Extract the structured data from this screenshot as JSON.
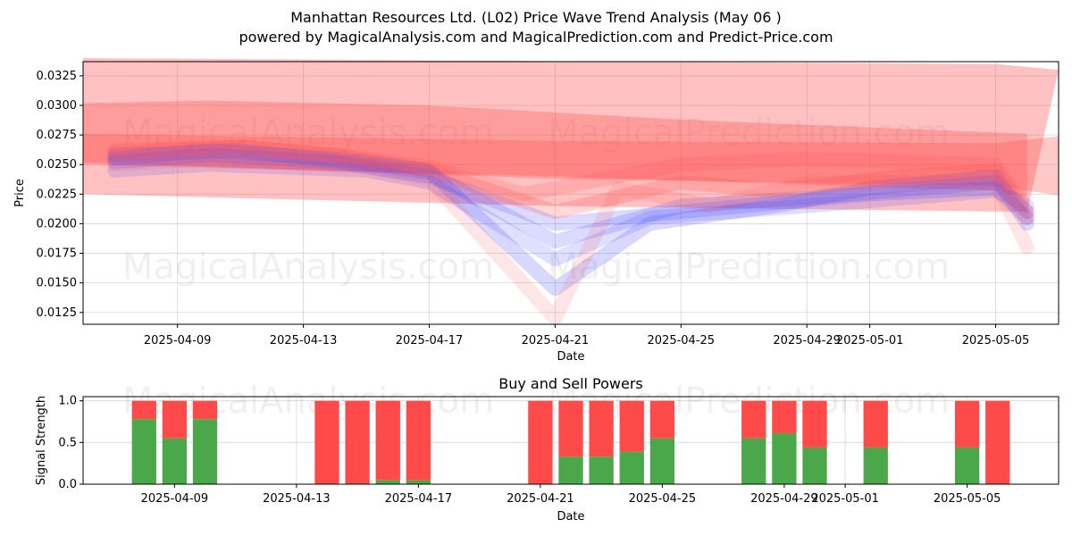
{
  "title_line1": "Manhattan Resources Ltd. (L02) Price Wave Trend Analysis (May 06 )",
  "title_line2": "powered by MagicalAnalysis.com and MagicalPrediction.com and Predict-Price.com",
  "watermarks": [
    "MagicalAnalysis.com",
    "MagicalPrediction.com"
  ],
  "colors": {
    "band": "#ff4d4d",
    "wave": "#4d4dff",
    "buy": "#4aa84a",
    "sell": "#ff4a4a"
  },
  "chart_data": [
    {
      "type": "area",
      "title": "",
      "xlabel": "Date",
      "ylabel": "Price",
      "xlim": [
        "2025-04-06",
        "2025-05-07"
      ],
      "ylim": [
        0.0115,
        0.0337
      ],
      "yticks": [
        0.0125,
        0.015,
        0.0175,
        0.02,
        0.0225,
        0.025,
        0.0275,
        0.03,
        0.0325
      ],
      "ytick_labels": [
        "0.0125",
        "0.0150",
        "0.0175",
        "0.0200",
        "0.0225",
        "0.0250",
        "0.0275",
        "0.0300",
        "0.0325"
      ],
      "xticks": [
        "2025-04-09",
        "2025-04-13",
        "2025-04-17",
        "2025-04-21",
        "2025-04-25",
        "2025-04-29",
        "2025-05-01",
        "2025-05-05"
      ],
      "grid": true,
      "bands": [
        {
          "name": "",
          "upper": [
            [
              "2025-04-06",
              0.034
            ],
            [
              "2025-05-05",
              0.0335
            ],
            [
              "2025-05-07",
              0.033
            ]
          ],
          "lower": [
            [
              "2025-04-06",
              0.0225
            ],
            [
              "2025-04-21",
              0.0215
            ],
            [
              "2025-05-06",
              0.021
            ]
          ],
          "opacity": 0.35
        },
        {
          "name": "",
          "upper": [
            [
              "2025-04-06",
              0.0302
            ],
            [
              "2025-04-10",
              0.0304
            ],
            [
              "2025-04-17",
              0.03
            ],
            [
              "2025-04-25",
              0.0288
            ],
            [
              "2025-05-06",
              0.0276
            ]
          ],
          "lower": [
            [
              "2025-04-06",
              0.025
            ],
            [
              "2025-04-21",
              0.024
            ],
            [
              "2025-05-05",
              0.0228
            ],
            [
              "2025-05-06",
              0.0222
            ]
          ],
          "opacity": 0.3
        },
        {
          "name": "",
          "upper": [
            [
              "2025-04-06",
              0.0276
            ],
            [
              "2025-04-21",
              0.027
            ],
            [
              "2025-05-05",
              0.0268
            ],
            [
              "2025-05-07",
              0.0274
            ]
          ],
          "lower": [
            [
              "2025-04-06",
              0.0252
            ],
            [
              "2025-04-21",
              0.0238
            ],
            [
              "2025-05-05",
              0.0232
            ],
            [
              "2025-05-07",
              0.0224
            ]
          ],
          "opacity": 0.3
        }
      ],
      "waves": [
        {
          "points": [
            [
              "2025-04-07",
              0.0255
            ],
            [
              "2025-04-10",
              0.0262
            ],
            [
              "2025-04-14",
              0.0255
            ],
            [
              "2025-04-17",
              0.0245
            ],
            [
              "2025-04-21",
              0.0145
            ],
            [
              "2025-04-24",
              0.02
            ],
            [
              "2025-04-28",
              0.0215
            ],
            [
              "2025-05-01",
              0.023
            ],
            [
              "2025-05-05",
              0.024
            ],
            [
              "2025-05-06",
              0.02
            ]
          ],
          "color": "wave",
          "opacity": 0.22
        },
        {
          "points": [
            [
              "2025-04-07",
              0.0258
            ],
            [
              "2025-04-11",
              0.0262
            ],
            [
              "2025-04-15",
              0.025
            ],
            [
              "2025-04-17",
              0.0243
            ],
            [
              "2025-04-21",
              0.0185
            ],
            [
              "2025-04-25",
              0.0215
            ],
            [
              "2025-04-29",
              0.0222
            ],
            [
              "2025-05-05",
              0.0235
            ],
            [
              "2025-05-06",
              0.021
            ]
          ],
          "color": "wave",
          "opacity": 0.2
        },
        {
          "points": [
            [
              "2025-04-07",
              0.0252
            ],
            [
              "2025-04-10",
              0.0258
            ],
            [
              "2025-04-14",
              0.0252
            ],
            [
              "2025-04-17",
              0.024
            ],
            [
              "2025-04-21",
              0.02
            ],
            [
              "2025-04-25",
              0.021
            ],
            [
              "2025-05-01",
              0.0225
            ],
            [
              "2025-05-05",
              0.023
            ],
            [
              "2025-05-06",
              0.0205
            ]
          ],
          "color": "wave",
          "opacity": 0.2
        },
        {
          "points": [
            [
              "2025-04-07",
              0.0245
            ],
            [
              "2025-04-10",
              0.025
            ],
            [
              "2025-04-15",
              0.0245
            ],
            [
              "2025-04-17",
              0.0235
            ],
            [
              "2025-04-21",
              0.017
            ],
            [
              "2025-04-24",
              0.0205
            ],
            [
              "2025-04-29",
              0.0215
            ],
            [
              "2025-05-05",
              0.0228
            ],
            [
              "2025-05-06",
              0.0215
            ]
          ],
          "color": "wave",
          "opacity": 0.18
        },
        {
          "points": [
            [
              "2025-04-07",
              0.026
            ],
            [
              "2025-04-11",
              0.0265
            ],
            [
              "2025-04-14",
              0.0258
            ],
            [
              "2025-04-17",
              0.0245
            ],
            [
              "2025-04-21",
              0.021
            ],
            [
              "2025-04-25",
              0.0235
            ],
            [
              "2025-04-28",
              0.0228
            ],
            [
              "2025-05-02",
              0.024
            ],
            [
              "2025-05-05",
              0.0245
            ],
            [
              "2025-05-06",
              0.0205
            ]
          ],
          "color": "band",
          "opacity": 0.22
        },
        {
          "points": [
            [
              "2025-04-07",
              0.025
            ],
            [
              "2025-04-10",
              0.0255
            ],
            [
              "2025-04-15",
              0.0248
            ],
            [
              "2025-04-17",
              0.0238
            ],
            [
              "2025-04-21",
              0.012
            ],
            [
              "2025-04-23",
              0.023
            ],
            [
              "2025-04-26",
              0.0215
            ],
            [
              "2025-04-29",
              0.0235
            ],
            [
              "2025-05-05",
              0.0235
            ],
            [
              "2025-05-06",
              0.018
            ]
          ],
          "color": "band",
          "opacity": 0.14
        },
        {
          "points": [
            [
              "2025-04-07",
              0.0262
            ],
            [
              "2025-04-11",
              0.0265
            ],
            [
              "2025-04-14",
              0.0258
            ],
            [
              "2025-04-17",
              0.0248
            ],
            [
              "2025-04-20",
              0.0225
            ],
            [
              "2025-04-25",
              0.025
            ],
            [
              "2025-04-29",
              0.0255
            ],
            [
              "2025-05-05",
              0.025
            ],
            [
              "2025-05-06",
              0.021
            ]
          ],
          "color": "band",
          "opacity": 0.18
        }
      ]
    },
    {
      "type": "bar",
      "title": "Buy and Sell Powers",
      "xlabel": "Date",
      "ylabel": "Signal Strength",
      "ylim": [
        0,
        1.05
      ],
      "yticks": [
        0.0,
        0.5,
        1.0
      ],
      "ytick_labels": [
        "0.0",
        "0.5",
        "1.0"
      ],
      "xticks": [
        "2025-04-09",
        "2025-04-13",
        "2025-04-17",
        "2025-04-21",
        "2025-04-25",
        "2025-04-29",
        "2025-05-01",
        "2025-05-05"
      ],
      "series": [
        {
          "name": "",
          "color": "buy",
          "values": [
            0.78,
            0.55,
            0.78,
            0.0,
            0.0,
            0.05,
            0.05,
            0.0,
            0.33,
            0.33,
            0.39,
            0.55,
            0.55,
            0.61,
            0.44,
            0.44,
            0.44,
            0.0
          ]
        },
        {
          "name": "",
          "color": "sell",
          "values": [
            0.22,
            0.45,
            0.22,
            1.0,
            1.0,
            0.95,
            0.95,
            1.0,
            0.67,
            0.67,
            0.61,
            0.45,
            0.45,
            0.39,
            0.56,
            0.56,
            0.56,
            1.0
          ]
        }
      ],
      "categories": [
        "2025-04-08",
        "2025-04-09",
        "2025-04-10",
        "2025-04-14",
        "2025-04-15",
        "2025-04-16",
        "2025-04-17",
        "2025-04-21",
        "2025-04-22",
        "2025-04-23",
        "2025-04-24",
        "2025-04-25",
        "2025-04-28",
        "2025-04-29",
        "2025-04-30",
        "2025-05-02",
        "2025-05-05",
        "2025-05-06"
      ]
    }
  ]
}
